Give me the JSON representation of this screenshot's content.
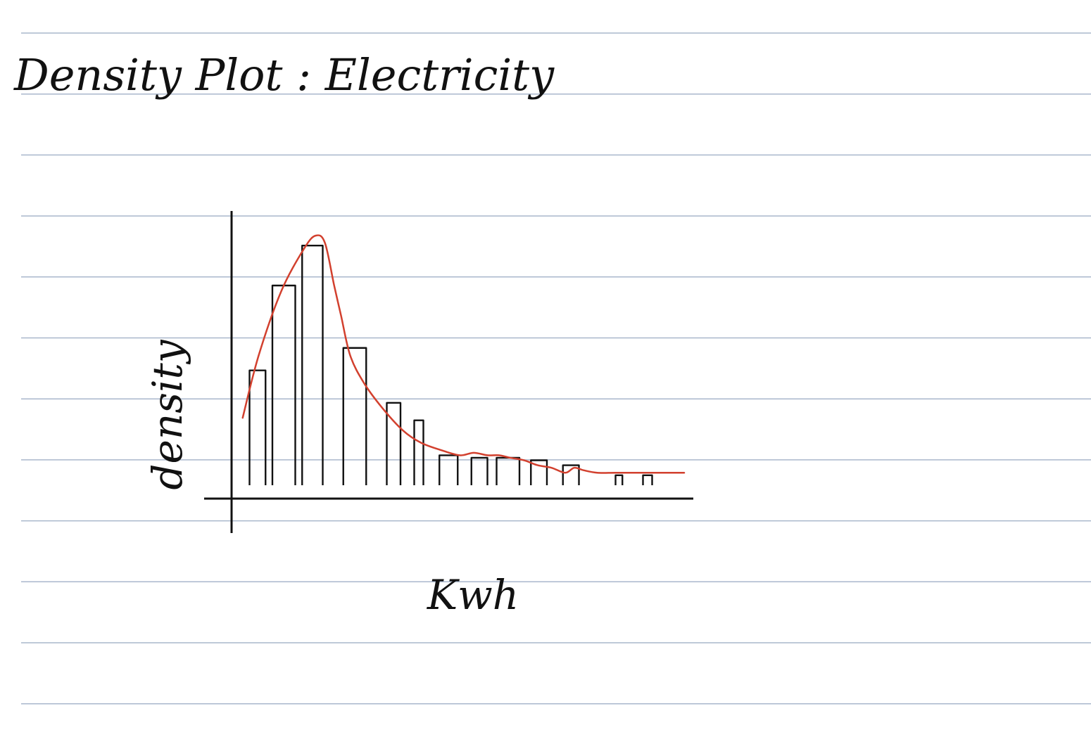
{
  "page": {
    "ruled_line_color": "#a9b7cc",
    "ink_color": "#111111"
  },
  "chart_data": {
    "type": "bar",
    "title": "Density Plot : Electricity",
    "xlabel": "Kwh",
    "ylabel": "density",
    "grid": false,
    "legend": "none",
    "xlim": [
      0,
      20
    ],
    "ylim": [
      0,
      1.0
    ],
    "bins": [
      {
        "x0": 0.6,
        "x1": 1.3,
        "value": 0.46
      },
      {
        "x0": 1.6,
        "x1": 2.6,
        "value": 0.8
      },
      {
        "x0": 2.9,
        "x1": 3.8,
        "value": 0.96
      },
      {
        "x0": 4.7,
        "x1": 5.7,
        "value": 0.55
      },
      {
        "x0": 6.6,
        "x1": 7.2,
        "value": 0.33
      },
      {
        "x0": 7.8,
        "x1": 8.2,
        "value": 0.26
      },
      {
        "x0": 8.9,
        "x1": 9.7,
        "value": 0.12
      },
      {
        "x0": 10.3,
        "x1": 11.0,
        "value": 0.11
      },
      {
        "x0": 11.4,
        "x1": 12.4,
        "value": 0.11
      },
      {
        "x0": 12.9,
        "x1": 13.6,
        "value": 0.1
      },
      {
        "x0": 14.3,
        "x1": 15.0,
        "value": 0.08
      },
      {
        "x0": 16.6,
        "x1": 16.9,
        "value": 0.04
      },
      {
        "x0": 17.8,
        "x1": 18.2,
        "value": 0.04
      }
    ],
    "density_curve": {
      "color": "#d2402e",
      "x": [
        0.3,
        1.0,
        2.0,
        3.0,
        3.5,
        3.9,
        4.3,
        4.6,
        5.0,
        5.6,
        6.4,
        7.3,
        8.1,
        9.0,
        9.8,
        10.4,
        11.0,
        11.5,
        12.0,
        12.6,
        13.2,
        13.8,
        14.4,
        14.8,
        15.2,
        15.8,
        16.6,
        17.6,
        18.6,
        19.6
      ],
      "y": [
        0.27,
        0.52,
        0.78,
        0.95,
        1.0,
        0.97,
        0.8,
        0.68,
        0.52,
        0.41,
        0.31,
        0.22,
        0.17,
        0.14,
        0.12,
        0.13,
        0.12,
        0.12,
        0.11,
        0.1,
        0.08,
        0.07,
        0.05,
        0.07,
        0.06,
        0.05,
        0.05,
        0.05,
        0.05,
        0.05
      ]
    }
  }
}
